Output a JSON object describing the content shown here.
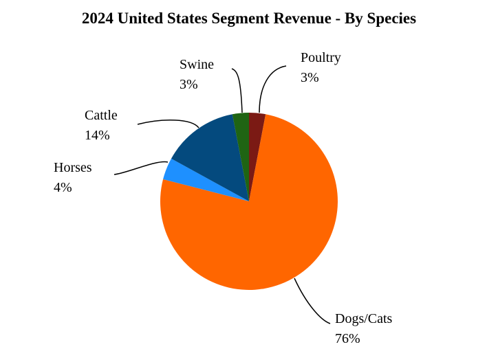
{
  "chart_data": {
    "type": "pie",
    "title": "2024 United States Segment Revenue - By Species",
    "slices": [
      {
        "label": "Poultry",
        "value": 3,
        "value_label": "3%",
        "color": "#7B1A14"
      },
      {
        "label": "Dogs/Cats",
        "value": 76,
        "value_label": "76%",
        "color": "#FF6600"
      },
      {
        "label": "Horses",
        "value": 4,
        "value_label": "4%",
        "color": "#1E90FF"
      },
      {
        "label": "Cattle",
        "value": 14,
        "value_label": "14%",
        "color": "#044A7E"
      },
      {
        "label": "Swine",
        "value": 3,
        "value_label": "3%",
        "color": "#1F6413"
      }
    ],
    "start": "12 o'clock",
    "direction": "clockwise",
    "legend": "none",
    "labels": "outside with leader lines"
  }
}
